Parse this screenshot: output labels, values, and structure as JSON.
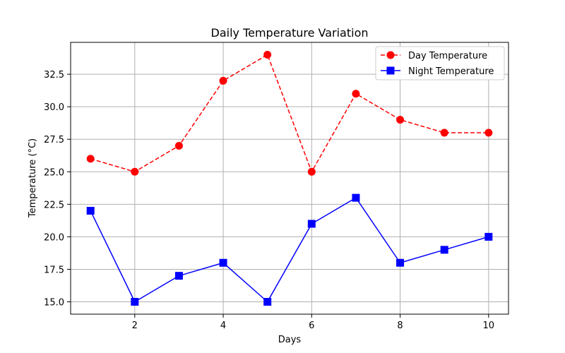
{
  "chart_data": {
    "type": "line",
    "title": "Daily Temperature Variation",
    "xlabel": "Days",
    "ylabel": "Temperature (°C)",
    "x": [
      1,
      2,
      3,
      4,
      5,
      6,
      7,
      8,
      9,
      10
    ],
    "xlim": [
      0.55,
      10.45
    ],
    "ylim": [
      14.05,
      34.95
    ],
    "xticks": [
      2,
      4,
      6,
      8,
      10
    ],
    "yticks": [
      15.0,
      17.5,
      20.0,
      22.5,
      25.0,
      27.5,
      30.0,
      32.5
    ],
    "xtick_labels": [
      "2",
      "4",
      "6",
      "8",
      "10"
    ],
    "ytick_labels": [
      "15.0",
      "17.5",
      "20.0",
      "22.5",
      "25.0",
      "27.5",
      "30.0",
      "32.5"
    ],
    "grid": true,
    "legend_position": "top-right",
    "series": [
      {
        "name": "Day Temperature",
        "values": [
          26,
          25,
          27,
          32,
          34,
          25,
          31,
          29,
          28,
          28
        ],
        "color": "#ff0000",
        "line_style": "dashed",
        "marker": "circle"
      },
      {
        "name": "Night Temperature",
        "values": [
          22,
          15,
          17,
          18,
          15,
          21,
          23,
          18,
          19,
          20
        ],
        "color": "#0000ff",
        "line_style": "solid",
        "marker": "square"
      }
    ]
  }
}
